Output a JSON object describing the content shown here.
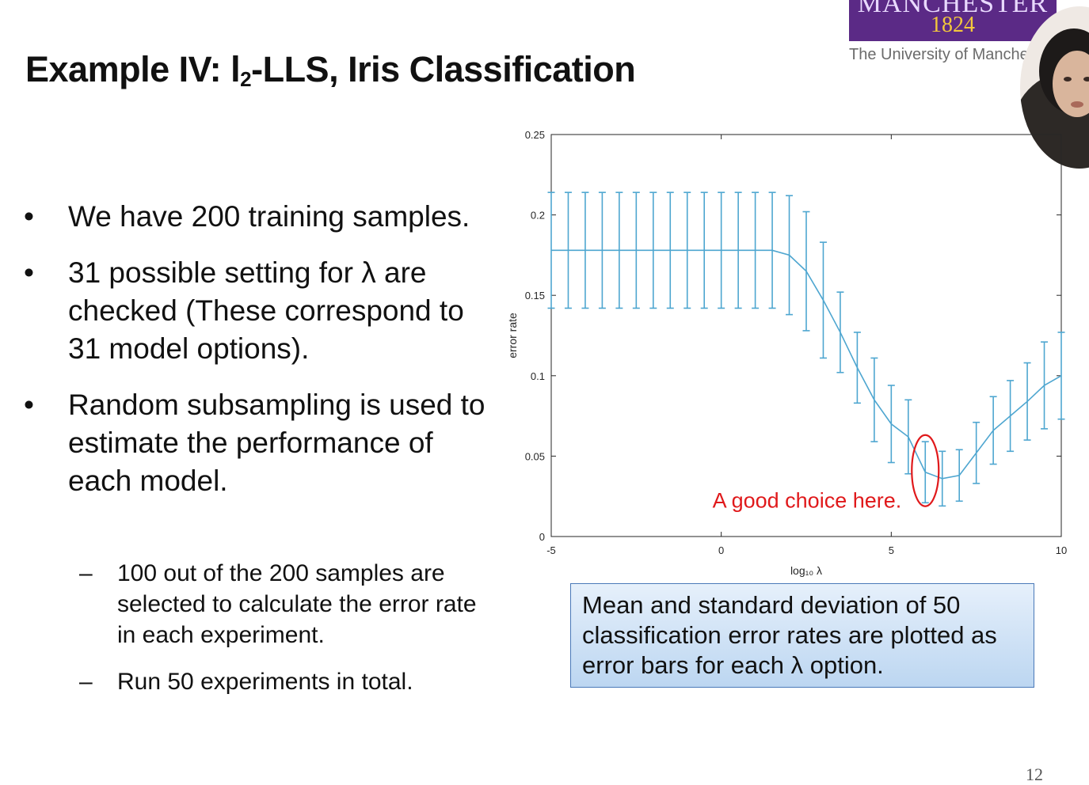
{
  "slide": {
    "title_main": "Example IV: l",
    "title_sub": "2",
    "title_rest": "-LLS, Iris Classification",
    "page_number": "12"
  },
  "logo": {
    "word": "MANCHESTER",
    "year": "1824",
    "university": "The University of Manchester"
  },
  "bullets": [
    {
      "marker": "•",
      "text": "We have 200 training samples."
    },
    {
      "marker": "•",
      "text": "31 possible setting for λ are checked (These correspond to 31 model options)."
    },
    {
      "marker": "•",
      "text": "Random subsampling is used to estimate the performance of each model."
    }
  ],
  "sub_bullets": [
    {
      "marker": "–",
      "text": "100 out of the 200 samples are selected to calculate the error rate in each experiment."
    },
    {
      "marker": "–",
      "text": "Run 50 experiments in total."
    }
  ],
  "note_box": {
    "text": "Mean and standard deviation of 50 classification error rates are plotted as error bars for each λ option."
  },
  "chart_data": {
    "type": "line",
    "xlabel": "log₁₀ λ",
    "ylabel": "error rate",
    "xlim": [
      -5,
      10
    ],
    "ylim": [
      0,
      0.25
    ],
    "xticks": [
      "-5",
      "0",
      "5",
      "10"
    ],
    "yticks": [
      "0",
      "0.05",
      "0.1",
      "0.15",
      "0.2",
      "0.25"
    ],
    "grid": false,
    "series_color": "#4ea6d0",
    "highlight_color": "#e0191b",
    "x": [
      -5,
      -4.5,
      -4,
      -3.5,
      -3,
      -2.5,
      -2,
      -1.5,
      -1,
      -0.5,
      0,
      0.5,
      1,
      1.5,
      2,
      2.5,
      3,
      3.5,
      4,
      4.5,
      5,
      5.5,
      6,
      6.5,
      7,
      7.5,
      8,
      8.5,
      9,
      9.5,
      10
    ],
    "mean": [
      0.178,
      0.178,
      0.178,
      0.178,
      0.178,
      0.178,
      0.178,
      0.178,
      0.178,
      0.178,
      0.178,
      0.178,
      0.178,
      0.178,
      0.175,
      0.165,
      0.147,
      0.127,
      0.105,
      0.085,
      0.07,
      0.062,
      0.04,
      0.036,
      0.038,
      0.052,
      0.066,
      0.075,
      0.084,
      0.094,
      0.1
    ],
    "error": [
      0.036,
      0.036,
      0.036,
      0.036,
      0.036,
      0.036,
      0.036,
      0.036,
      0.036,
      0.036,
      0.036,
      0.036,
      0.036,
      0.036,
      0.037,
      0.037,
      0.036,
      0.025,
      0.022,
      0.026,
      0.024,
      0.023,
      0.019,
      0.017,
      0.016,
      0.019,
      0.021,
      0.022,
      0.024,
      0.027,
      0.027
    ],
    "annotation": {
      "text": "A good choice here.",
      "x": 6
    }
  }
}
